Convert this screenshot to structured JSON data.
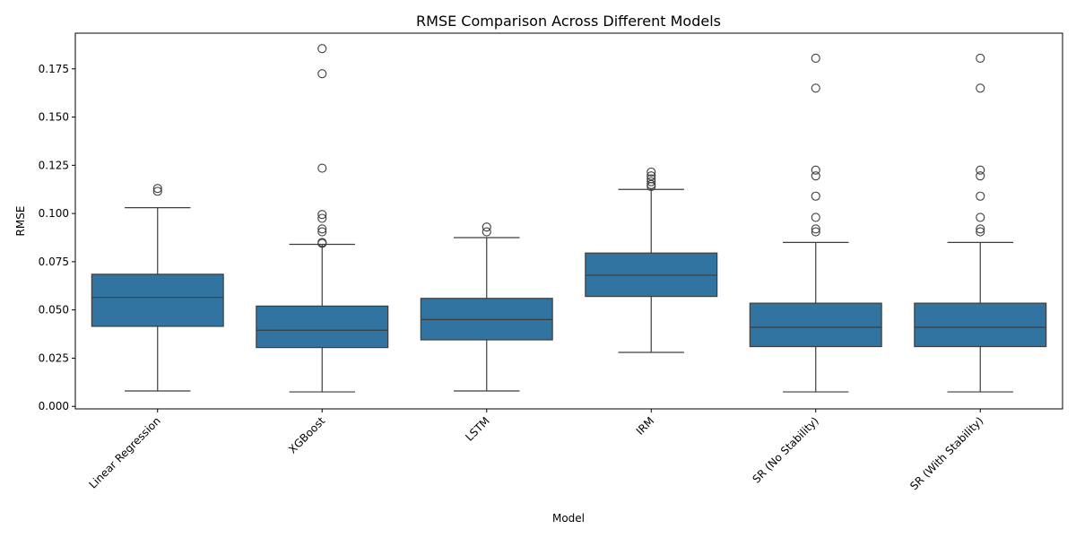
{
  "chart_data": {
    "type": "box",
    "title": "RMSE Comparison Across Different Models",
    "xlabel": "Model",
    "ylabel": "RMSE",
    "ylim": [
      -0.0013,
      0.1935
    ],
    "yticks": [
      0.0,
      0.025,
      0.05,
      0.075,
      0.1,
      0.125,
      0.15,
      0.175
    ],
    "ytick_labels": [
      "0.000",
      "0.025",
      "0.050",
      "0.075",
      "0.100",
      "0.125",
      "0.150",
      "0.175"
    ],
    "grid": false,
    "box_color": "#3274a1",
    "line_color": "#3d3d3d",
    "categories": [
      "Linear Regression",
      "XGBoost",
      "LSTM",
      "IRM",
      "SR (No Stability)",
      "SR (With Stability)"
    ],
    "boxes": [
      {
        "whisker_low": 0.008,
        "q1": 0.0415,
        "median": 0.0565,
        "q3": 0.0685,
        "whisker_high": 0.103,
        "outliers": [
          0.1115,
          0.113
        ]
      },
      {
        "whisker_low": 0.0075,
        "q1": 0.0305,
        "median": 0.0395,
        "q3": 0.052,
        "whisker_high": 0.084,
        "outliers": [
          0.0845,
          0.085,
          0.0905,
          0.092,
          0.0975,
          0.0995,
          0.1235,
          0.1725,
          0.1855
        ]
      },
      {
        "whisker_low": 0.008,
        "q1": 0.0345,
        "median": 0.045,
        "q3": 0.056,
        "whisker_high": 0.0875,
        "outliers": [
          0.0905,
          0.093
        ]
      },
      {
        "whisker_low": 0.028,
        "q1": 0.057,
        "median": 0.068,
        "q3": 0.0795,
        "whisker_high": 0.1125,
        "outliers": [
          0.114,
          0.115,
          0.1165,
          0.118,
          0.1195,
          0.1215
        ]
      },
      {
        "whisker_low": 0.0075,
        "q1": 0.031,
        "median": 0.041,
        "q3": 0.0535,
        "whisker_high": 0.085,
        "outliers": [
          0.0905,
          0.092,
          0.098,
          0.109,
          0.1195,
          0.1225,
          0.165,
          0.1805
        ]
      },
      {
        "whisker_low": 0.0075,
        "q1": 0.031,
        "median": 0.041,
        "q3": 0.0535,
        "whisker_high": 0.085,
        "outliers": [
          0.0905,
          0.092,
          0.098,
          0.109,
          0.1195,
          0.1225,
          0.165,
          0.1805
        ]
      }
    ]
  }
}
